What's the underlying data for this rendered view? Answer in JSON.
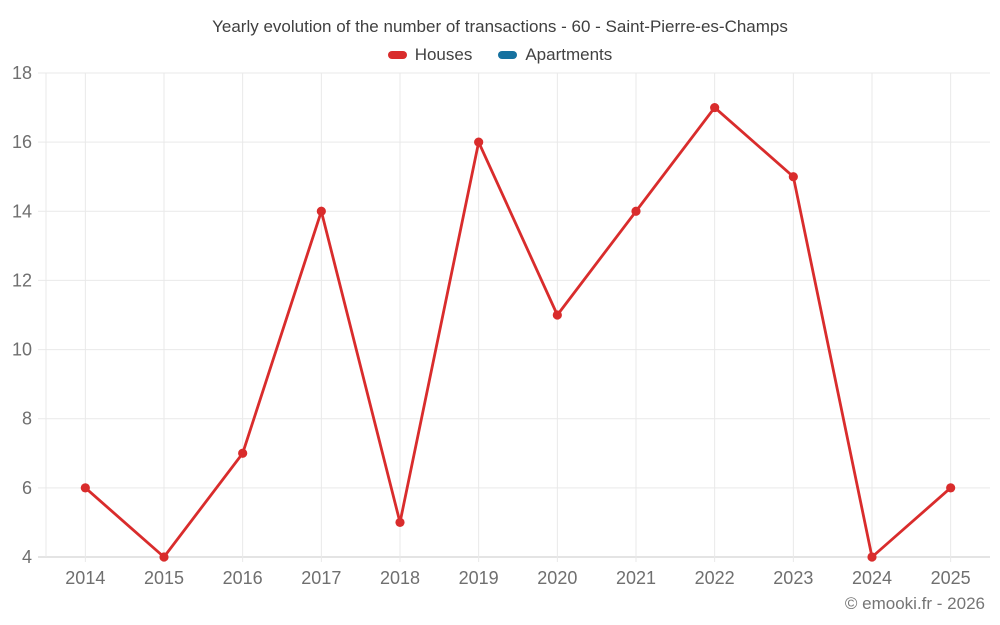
{
  "header": {
    "title": "Yearly evolution of the number of transactions - 60 - Saint-Pierre-es-Champs"
  },
  "legend": {
    "items": [
      {
        "label": "Houses",
        "color": "#d92c2c"
      },
      {
        "label": "Apartments",
        "color": "#16719f"
      }
    ]
  },
  "footer": {
    "credit": "© emooki.fr - 2026"
  },
  "chart_data": {
    "type": "line",
    "title": "Yearly evolution of the number of transactions - 60 - Saint-Pierre-es-Champs",
    "categories": [
      "2014",
      "2015",
      "2016",
      "2017",
      "2018",
      "2019",
      "2020",
      "2021",
      "2022",
      "2023",
      "2024",
      "2025"
    ],
    "series": [
      {
        "name": "Houses",
        "color": "#d92c2c",
        "values": [
          6,
          4,
          7,
          14,
          5,
          16,
          11,
          14,
          17,
          15,
          4,
          6
        ]
      },
      {
        "name": "Apartments",
        "color": "#16719f",
        "values": []
      }
    ],
    "xlabel": "",
    "ylabel": "",
    "ylim": [
      4,
      18
    ],
    "ytick_step": 2,
    "grid": true,
    "legend_position": "top",
    "colors": {
      "grid_line": "#e9e9e9",
      "axis_line": "#c9c9c9",
      "tick_label": "#6f6f6f",
      "title_text": "#3f3f3f",
      "footer_text": "#757575",
      "background": "#ffffff"
    }
  }
}
